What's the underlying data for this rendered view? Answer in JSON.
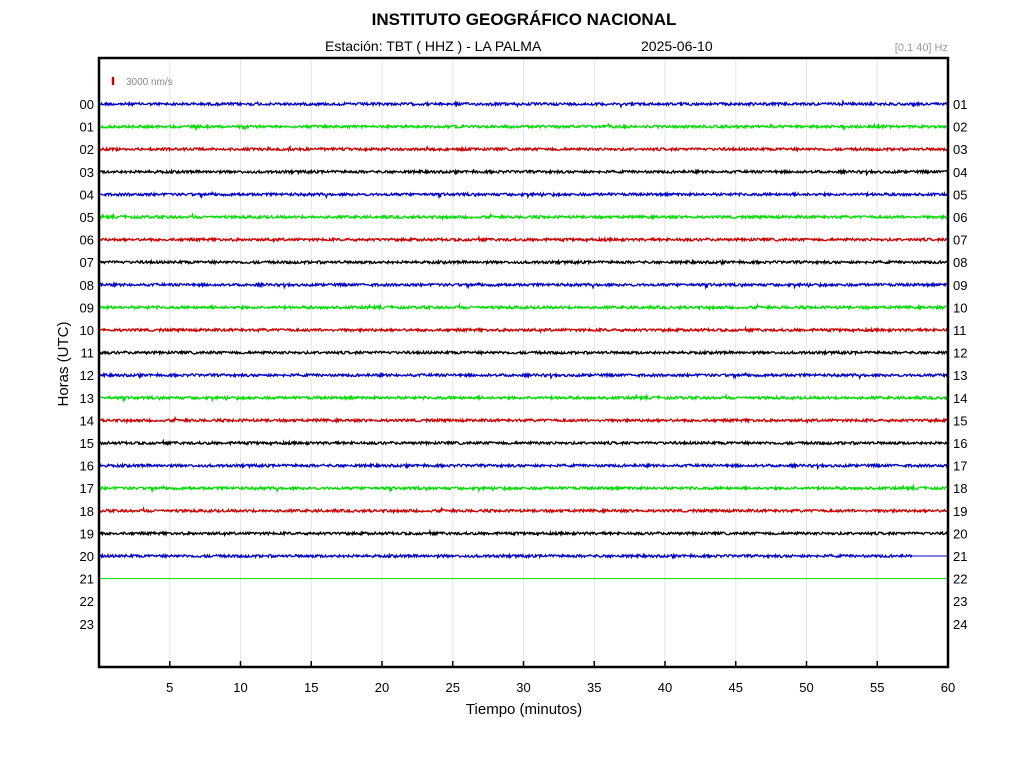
{
  "header": {
    "title": "INSTITUTO GEOGRÁFICO NACIONAL",
    "station": "Estación:  TBT ( HHZ ) - LA PALMA",
    "date": "2025-06-10",
    "filter": "[0.1 40] Hz"
  },
  "chart_data": {
    "type": "line",
    "title": "INSTITUTO GEOGRÁFICO NACIONAL",
    "xlabel": "Tiempo (minutos)",
    "ylabel": "Horas (UTC)",
    "xlim": [
      0,
      60
    ],
    "x_ticks": [
      5,
      10,
      15,
      20,
      25,
      30,
      35,
      40,
      45,
      50,
      55,
      60
    ],
    "y_ticks_left": [
      "00",
      "01",
      "02",
      "03",
      "04",
      "05",
      "06",
      "07",
      "08",
      "09",
      "10",
      "11",
      "12",
      "13",
      "14",
      "15",
      "16",
      "17",
      "18",
      "19",
      "20",
      "21",
      "22",
      "23"
    ],
    "y_ticks_right": [
      "01",
      "02",
      "03",
      "04",
      "05",
      "06",
      "07",
      "08",
      "09",
      "10",
      "11",
      "12",
      "13",
      "14",
      "15",
      "16",
      "17",
      "18",
      "19",
      "20",
      "21",
      "22",
      "23",
      "24"
    ],
    "scale_bar": {
      "label": "3000 nm/s",
      "color": "#cc0000"
    },
    "grid": true,
    "trace_colors": [
      "#0000c8",
      "#00dd00",
      "#cc0000",
      "#000000"
    ],
    "traces": [
      {
        "hour": "00",
        "end_minute": 60,
        "amplitude": 1.0
      },
      {
        "hour": "01",
        "end_minute": 60,
        "amplitude": 1.0
      },
      {
        "hour": "02",
        "end_minute": 60,
        "amplitude": 1.0
      },
      {
        "hour": "03",
        "end_minute": 60,
        "amplitude": 1.0
      },
      {
        "hour": "04",
        "end_minute": 60,
        "amplitude": 1.0
      },
      {
        "hour": "05",
        "end_minute": 60,
        "amplitude": 1.0
      },
      {
        "hour": "06",
        "end_minute": 60,
        "amplitude": 1.0
      },
      {
        "hour": "07",
        "end_minute": 60,
        "amplitude": 1.0
      },
      {
        "hour": "08",
        "end_minute": 60,
        "amplitude": 1.0
      },
      {
        "hour": "09",
        "end_minute": 60,
        "amplitude": 1.0
      },
      {
        "hour": "10",
        "end_minute": 60,
        "amplitude": 1.0
      },
      {
        "hour": "11",
        "end_minute": 60,
        "amplitude": 1.0
      },
      {
        "hour": "12",
        "end_minute": 60,
        "amplitude": 1.0
      },
      {
        "hour": "13",
        "end_minute": 60,
        "amplitude": 1.0
      },
      {
        "hour": "14",
        "end_minute": 60,
        "amplitude": 1.0
      },
      {
        "hour": "15",
        "end_minute": 60,
        "amplitude": 1.0
      },
      {
        "hour": "16",
        "end_minute": 60,
        "amplitude": 1.0
      },
      {
        "hour": "17",
        "end_minute": 60,
        "amplitude": 1.0
      },
      {
        "hour": "18",
        "end_minute": 60,
        "amplitude": 1.0
      },
      {
        "hour": "19",
        "end_minute": 60,
        "amplitude": 1.0
      },
      {
        "hour": "20",
        "end_minute": 57.5,
        "amplitude": 1.0
      },
      {
        "hour": "21",
        "end_minute": 60,
        "amplitude": 0.0
      }
    ]
  }
}
